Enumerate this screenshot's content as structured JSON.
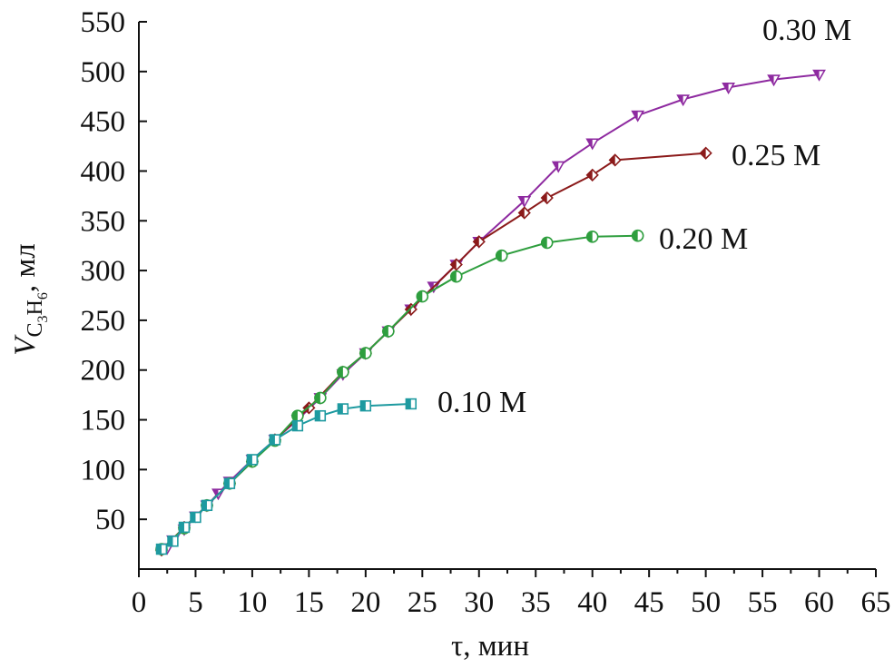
{
  "chart_data": {
    "type": "line",
    "xlabel_symbol": "τ",
    "xlabel_unit": ", мин",
    "ylabel_symbol": "V",
    "ylabel_sub_c": "C",
    "ylabel_sub_3": "3",
    "ylabel_sub_h": "H",
    "ylabel_sub_6": "6",
    "ylabel_unit": ", мл",
    "xlim": [
      0,
      65
    ],
    "ylim": [
      0,
      550
    ],
    "x_ticks": [
      0,
      5,
      10,
      15,
      20,
      25,
      30,
      35,
      40,
      45,
      50,
      55,
      60,
      65
    ],
    "y_ticks": [
      50,
      100,
      150,
      200,
      250,
      300,
      350,
      400,
      450,
      500,
      550
    ],
    "grid": false,
    "series": [
      {
        "name": "0.30 M",
        "color": "#8e2aa0",
        "marker": "triangle-down",
        "x": [
          2.5,
          3,
          4,
          5,
          6,
          7,
          8,
          10,
          12,
          14,
          16,
          18,
          20,
          22,
          24,
          26,
          28,
          30,
          34,
          37,
          40,
          44,
          48,
          52,
          56,
          60
        ],
        "y": [
          21,
          29,
          40,
          53,
          64,
          76,
          88,
          110,
          130,
          150,
          172,
          196,
          217,
          239,
          261,
          284,
          306,
          329,
          370,
          405,
          428,
          456,
          472,
          484,
          492,
          497
        ]
      },
      {
        "name": "0.25 M",
        "color": "#8b1a1a",
        "marker": "diamond",
        "x": [
          2,
          4,
          6,
          8,
          10,
          12,
          15,
          18,
          20,
          22,
          24,
          28,
          30,
          34,
          36,
          40,
          42,
          50
        ],
        "y": [
          19,
          42,
          64,
          86,
          108,
          130,
          162,
          198,
          217,
          239,
          261,
          306,
          329,
          358,
          373,
          396,
          411,
          418
        ]
      },
      {
        "name": "0.20 M",
        "color": "#2e9e3e",
        "marker": "circle",
        "x": [
          2,
          4,
          6,
          8,
          10,
          12,
          14,
          16,
          18,
          20,
          22,
          25,
          28,
          32,
          36,
          40,
          44
        ],
        "y": [
          20,
          41,
          64,
          86,
          108,
          129,
          154,
          172,
          198,
          217,
          239,
          274,
          294,
          315,
          328,
          334,
          335
        ]
      },
      {
        "name": "0.10 M",
        "color": "#1e9aa0",
        "marker": "square",
        "x": [
          2,
          3,
          4,
          5,
          6,
          8,
          10,
          12,
          14,
          16,
          18,
          20,
          24
        ],
        "y": [
          20,
          28,
          42,
          52,
          64,
          86,
          110,
          130,
          144,
          154,
          161,
          164,
          166
        ]
      }
    ],
    "labels": [
      {
        "text": "0.30 M",
        "color": "#111111"
      },
      {
        "text": "0.25 M",
        "color": "#111111"
      },
      {
        "text": "0.20 M",
        "color": "#111111"
      },
      {
        "text": "0.10 M",
        "color": "#111111"
      }
    ]
  }
}
